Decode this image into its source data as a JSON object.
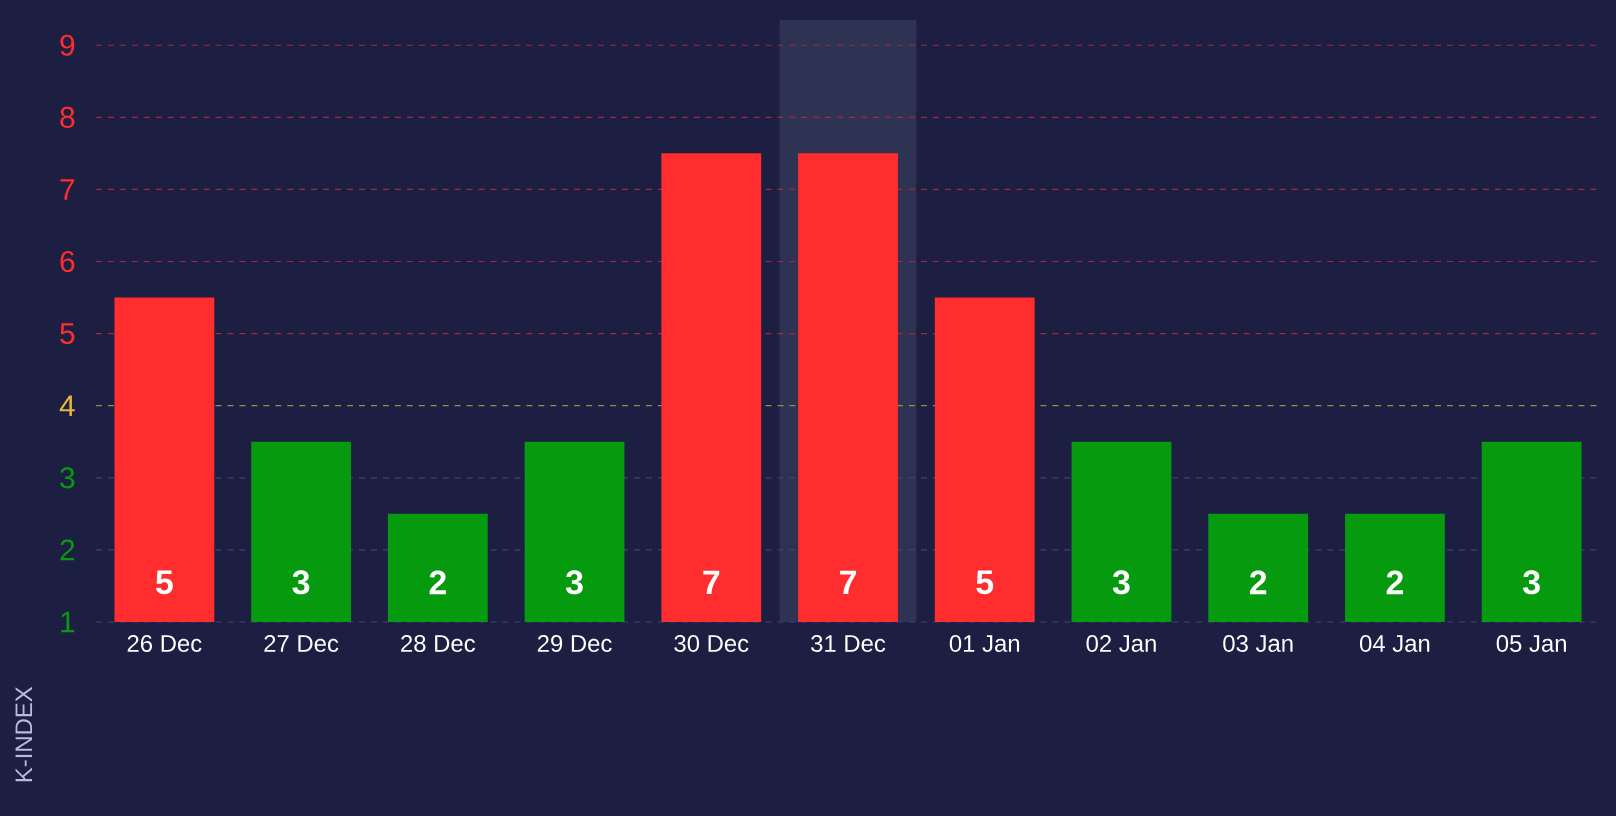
{
  "chart_data": {
    "type": "bar",
    "ylabel": "K-INDEX",
    "categories": [
      "26 Dec",
      "27 Dec",
      "28 Dec",
      "29 Dec",
      "30 Dec",
      "31 Dec",
      "01 Jan",
      "02 Jan",
      "03 Jan",
      "04 Jan",
      "05 Jan"
    ],
    "values": [
      5,
      3,
      2,
      3,
      7,
      7,
      5,
      3,
      2,
      2,
      3
    ],
    "colors": [
      "#ff2d2d",
      "#069a0e",
      "#069a0e",
      "#069a0e",
      "#ff2d2d",
      "#ff2d2d",
      "#ff2d2d",
      "#069a0e",
      "#069a0e",
      "#069a0e",
      "#069a0e"
    ],
    "ylim": [
      0.5,
      8.85
    ],
    "yticks": [
      {
        "value": 0.5,
        "label": "1"
      },
      {
        "value": 1.5,
        "label": "2"
      },
      {
        "value": 2.5,
        "label": "3"
      },
      {
        "value": 3.5,
        "label": "4"
      },
      {
        "value": 4.5,
        "label": "5"
      },
      {
        "value": 5.5,
        "label": "6"
      },
      {
        "value": 6.5,
        "label": "7"
      },
      {
        "value": 7.5,
        "label": "8"
      },
      {
        "value": 8.5,
        "label": "9"
      }
    ],
    "bands": [
      {
        "axis": "x",
        "from": "31 Dec",
        "to": "31 Dec",
        "color": "#2e3354"
      }
    ],
    "ref_lines": [
      {
        "axis": "y",
        "value": 3.5,
        "color": "#9c8a4a",
        "line_style": "dashed"
      }
    ],
    "grid": "y",
    "data_labels": true
  }
}
